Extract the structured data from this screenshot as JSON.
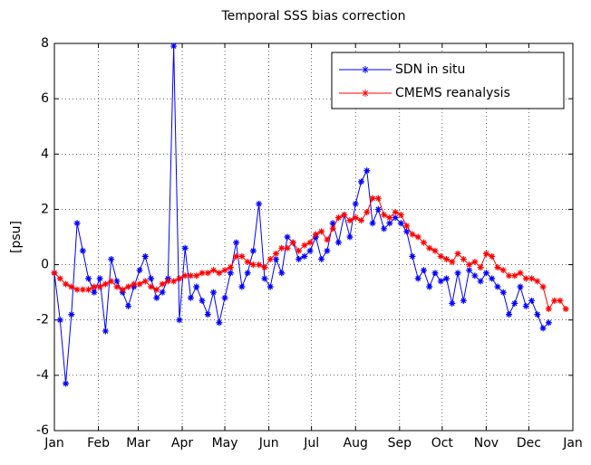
{
  "chart_data": {
    "type": "line",
    "title": "Temporal SSS bias correction",
    "y_label": "[psu]",
    "x": [
      1,
      5,
      9,
      13,
      17,
      21,
      25,
      29,
      33,
      37,
      41,
      45,
      49,
      53,
      57,
      61,
      65,
      69,
      73,
      77,
      81,
      85,
      89,
      93,
      97,
      101,
      105,
      109,
      113,
      117,
      121,
      125,
      129,
      133,
      137,
      141,
      145,
      149,
      153,
      157,
      161,
      165,
      169,
      173,
      177,
      181,
      185,
      189,
      193,
      197,
      201,
      205,
      209,
      213,
      217,
      221,
      225,
      229,
      233,
      237,
      241,
      245,
      249,
      253,
      257,
      261,
      265,
      269,
      273,
      277,
      281,
      285,
      289,
      293,
      297,
      301,
      305,
      309,
      313,
      317,
      321,
      325,
      329,
      333,
      337,
      341,
      345,
      349,
      353,
      357,
      361
    ],
    "series": [
      {
        "name": "SDN in situ",
        "color": "#0000ff",
        "values": [
          -0.3,
          -2.0,
          -4.3,
          -1.8,
          1.5,
          0.5,
          -0.5,
          -1.0,
          -0.5,
          -2.4,
          0.2,
          -0.6,
          -1.0,
          -1.5,
          -0.8,
          -0.2,
          0.3,
          -0.5,
          -1.2,
          -1.0,
          -0.5,
          7.9,
          -2.0,
          0.6,
          -1.2,
          -0.8,
          -1.3,
          -1.8,
          -1.0,
          -2.1,
          -1.2,
          -0.3,
          0.8,
          -0.8,
          -0.3,
          0.5,
          2.2,
          -0.5,
          -0.8,
          0.2,
          -0.3,
          1.0,
          0.8,
          0.2,
          0.3,
          0.5,
          1.0,
          0.2,
          0.5,
          1.5,
          0.8,
          1.8,
          1.0,
          2.2,
          3.0,
          3.4,
          1.5,
          2.0,
          1.3,
          1.5,
          1.7,
          1.5,
          1.2,
          0.3,
          -0.5,
          -0.2,
          -0.8,
          -0.3,
          -0.6,
          -0.5,
          -1.4,
          -0.3,
          -1.3,
          -0.2,
          -0.4,
          -0.6,
          -0.3,
          -0.5,
          -0.8,
          -1.0,
          -1.8,
          -1.4,
          -0.8,
          -1.5,
          -1.3,
          -1.8,
          -2.3,
          -2.1,
          null,
          null,
          null
        ]
      },
      {
        "name": "CMEMS reanalysis",
        "color": "#ff0000",
        "values": [
          -0.3,
          -0.5,
          -0.7,
          -0.8,
          -0.9,
          -0.9,
          -0.9,
          -0.8,
          -0.8,
          -0.7,
          -0.6,
          -0.8,
          -0.9,
          -0.8,
          -0.7,
          -0.7,
          -0.6,
          -0.8,
          -0.9,
          -0.7,
          -0.6,
          -0.6,
          -0.5,
          -0.4,
          -0.4,
          -0.4,
          -0.3,
          -0.3,
          -0.2,
          -0.3,
          -0.2,
          -0.1,
          0.3,
          0.3,
          0.1,
          0.0,
          0.0,
          -0.1,
          0.2,
          0.4,
          0.6,
          0.6,
          0.8,
          0.5,
          0.7,
          0.8,
          1.1,
          1.2,
          0.9,
          1.3,
          1.7,
          1.8,
          1.6,
          1.7,
          1.6,
          1.9,
          2.4,
          2.4,
          1.8,
          1.7,
          1.9,
          1.8,
          1.4,
          1.1,
          1.0,
          0.8,
          0.6,
          0.5,
          0.3,
          0.2,
          0.1,
          0.4,
          0.2,
          0.0,
          0.1,
          -0.1,
          0.4,
          0.3,
          -0.1,
          -0.2,
          -0.4,
          -0.4,
          -0.3,
          -0.5,
          -0.5,
          -0.6,
          -0.8,
          -1.6,
          -1.3,
          -1.3,
          -1.6
        ]
      }
    ],
    "xlim": [
      1,
      366
    ],
    "xticks": [
      {
        "value": 1,
        "label": "Jan"
      },
      {
        "value": 32,
        "label": "Feb"
      },
      {
        "value": 60,
        "label": "Mar"
      },
      {
        "value": 91,
        "label": "Apr"
      },
      {
        "value": 121,
        "label": "May"
      },
      {
        "value": 152,
        "label": "Jun"
      },
      {
        "value": 182,
        "label": "Jul"
      },
      {
        "value": 213,
        "label": "Aug"
      },
      {
        "value": 244,
        "label": "Sep"
      },
      {
        "value": 274,
        "label": "Oct"
      },
      {
        "value": 305,
        "label": "Nov"
      },
      {
        "value": 335,
        "label": "Dec"
      },
      {
        "value": 366,
        "label": "Jan"
      }
    ],
    "ylim": [
      -6,
      8
    ],
    "yticks": [
      -6,
      -4,
      -2,
      0,
      2,
      4,
      6,
      8
    ],
    "grid": true,
    "legend": "upper right"
  }
}
